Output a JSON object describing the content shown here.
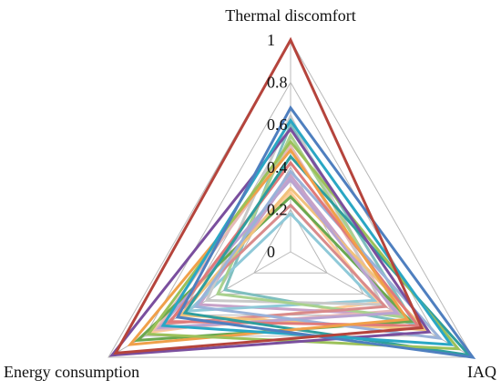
{
  "chart_data": {
    "type": "radar",
    "axes": [
      "Thermal discomfort",
      "IAQ",
      "Energy consumption"
    ],
    "range": [
      0,
      1
    ],
    "ticks": [
      "0",
      "0.2",
      "0.4",
      "0.6",
      "0.8",
      "1"
    ],
    "grid": true,
    "legend": "none",
    "series": [
      {
        "values": [
          1.0,
          0.72,
          0.96
        ],
        "color": "#b5443c"
      },
      {
        "values": [
          0.68,
          1.0,
          0.62
        ],
        "color": "#4f7fbf"
      },
      {
        "values": [
          0.62,
          0.88,
          0.7
        ],
        "color": "#2aa7c4"
      },
      {
        "values": [
          0.58,
          0.76,
          0.98
        ],
        "color": "#7a4f9e"
      },
      {
        "values": [
          0.52,
          0.92,
          0.78
        ],
        "color": "#9cc15a"
      },
      {
        "values": [
          0.48,
          0.64,
          0.88
        ],
        "color": "#f0a04a"
      },
      {
        "values": [
          0.45,
          0.98,
          0.58
        ],
        "color": "#2f9e9e"
      },
      {
        "values": [
          0.42,
          0.7,
          0.66
        ],
        "color": "#e07a7a"
      },
      {
        "values": [
          0.38,
          0.82,
          0.52
        ],
        "color": "#9ab2d9"
      },
      {
        "values": [
          0.34,
          0.58,
          0.72
        ],
        "color": "#b9a3d1"
      },
      {
        "values": [
          0.3,
          0.74,
          0.6
        ],
        "color": "#f1c27d"
      },
      {
        "values": [
          0.26,
          0.66,
          0.84
        ],
        "color": "#6aa84f"
      },
      {
        "values": [
          0.22,
          0.52,
          0.68
        ],
        "color": "#d98b8b"
      },
      {
        "values": [
          0.55,
          0.62,
          0.4
        ],
        "color": "#a9d18e"
      },
      {
        "values": [
          0.64,
          0.5,
          0.46
        ],
        "color": "#c9c9c9"
      },
      {
        "values": [
          0.18,
          0.46,
          0.56
        ],
        "color": "#8fc9d8"
      },
      {
        "values": [
          0.5,
          0.56,
          0.74
        ],
        "color": "#e6b9b8"
      },
      {
        "values": [
          0.36,
          0.6,
          0.5
        ],
        "color": "#c8a2c8"
      },
      {
        "values": [
          0.28,
          0.48,
          0.76
        ],
        "color": "#ffcc99"
      },
      {
        "values": [
          0.6,
          0.68,
          0.36
        ],
        "color": "#7fbfbf"
      }
    ]
  }
}
